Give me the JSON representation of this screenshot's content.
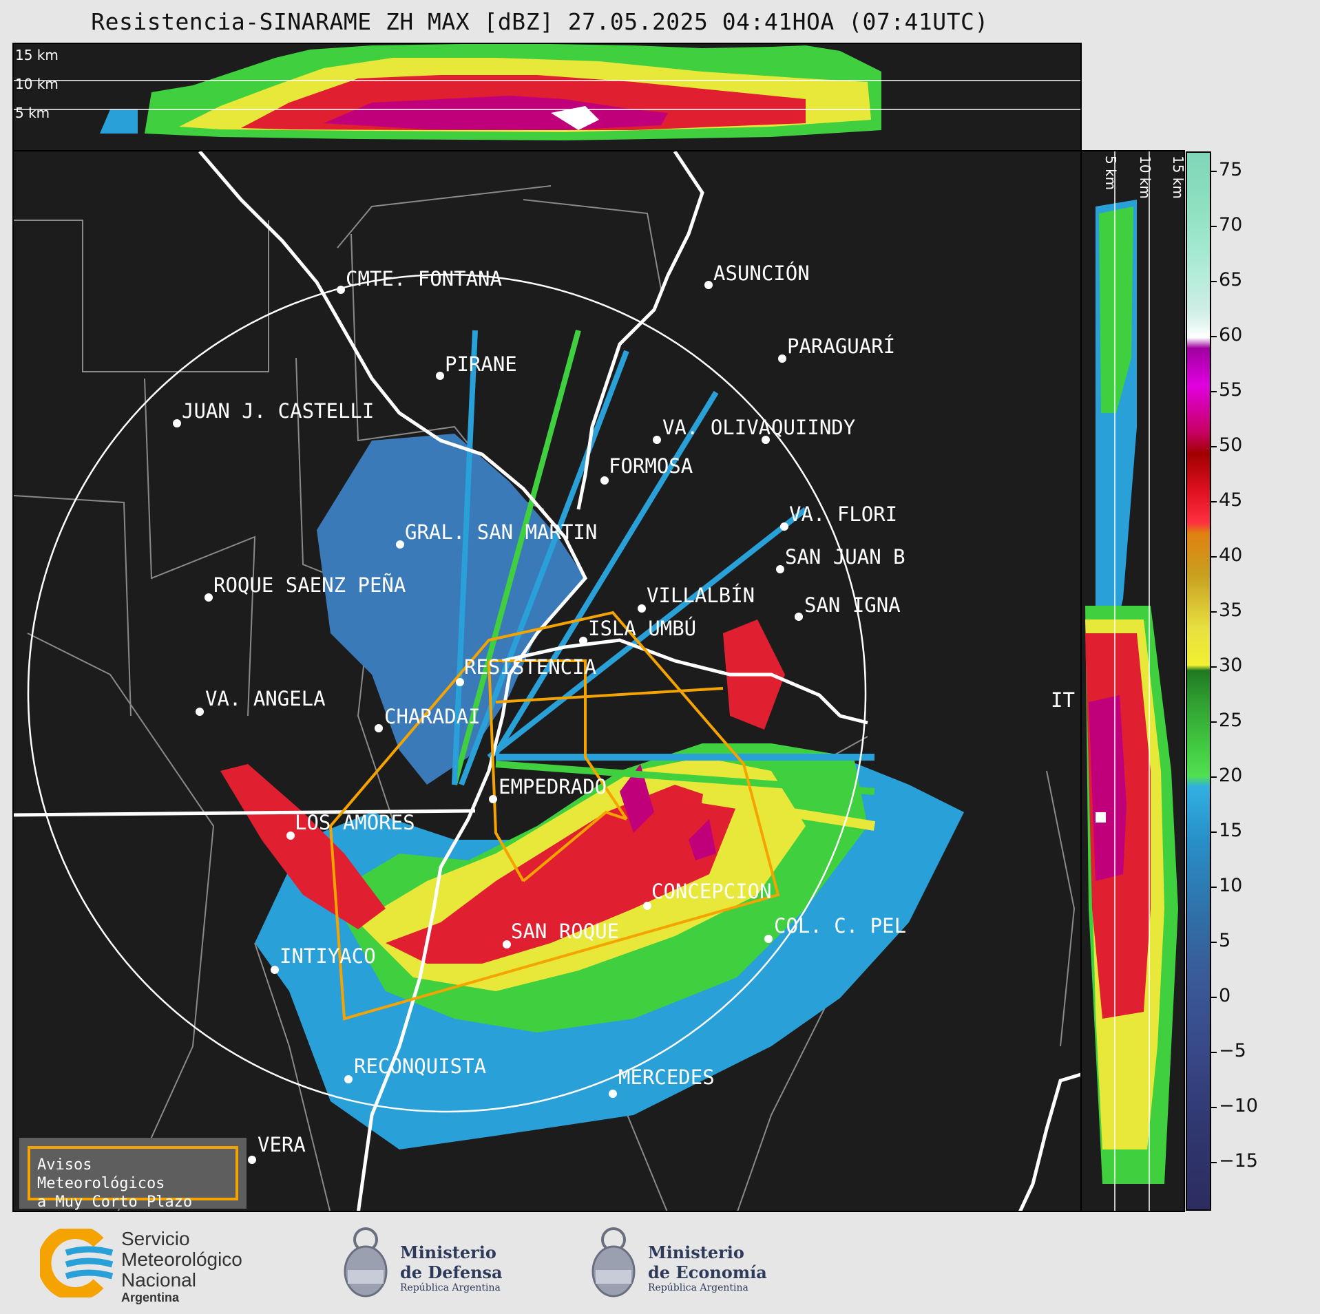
{
  "title": "Resistencia-SINARAME ZH MAX [dBZ] 27.05.2025 04:41HOA (07:41UTC)",
  "top_panel": {
    "km_labels": [
      "15 km",
      "10 km",
      "5 km"
    ]
  },
  "side_panel": {
    "km_labels": [
      "5 km",
      "10 km",
      "15 km"
    ]
  },
  "colorbar": {
    "ticks": [
      "75",
      "70",
      "65",
      "60",
      "55",
      "50",
      "45",
      "40",
      "35",
      "30",
      "25",
      "20",
      "15",
      "10",
      "5",
      "0",
      "−5",
      "−10",
      "−15"
    ]
  },
  "cities": [
    {
      "name": "CMTE. FONTANA"
    },
    {
      "name": "ASUNCIÓN"
    },
    {
      "name": "PIRANE"
    },
    {
      "name": "PARAGUARÍ"
    },
    {
      "name": "JUAN J. CASTELLI"
    },
    {
      "name": "VA. OLIVA"
    },
    {
      "name": "QUIINDY"
    },
    {
      "name": "FORMOSA"
    },
    {
      "name": "VA. FLORI"
    },
    {
      "name": "GRAL. SAN MARTIN"
    },
    {
      "name": "SAN JUAN B"
    },
    {
      "name": "ROQUE SAENZ PEÑA"
    },
    {
      "name": "SAN IGNA"
    },
    {
      "name": "ISLA UMBÚ"
    },
    {
      "name": "VILLALBÍN"
    },
    {
      "name": "RESISTENCIA"
    },
    {
      "name": "VA. ANGELA"
    },
    {
      "name": "CHARADAI"
    },
    {
      "name": "IT"
    },
    {
      "name": "EMPEDRADO"
    },
    {
      "name": "LOS AMORES"
    },
    {
      "name": "CONCEPCION"
    },
    {
      "name": "SAN ROQUE"
    },
    {
      "name": "COL. C. PEL"
    },
    {
      "name": "INTIYACO"
    },
    {
      "name": "RECONQUISTA"
    },
    {
      "name": "MERCEDES"
    },
    {
      "name": "VERA"
    }
  ],
  "legend": {
    "line1": "Avisos Meteorológicos",
    "line2": "a Muy Corto Plazo"
  },
  "logos": {
    "smn": [
      "Servicio",
      "Meteorológico",
      "Nacional",
      "Argentina"
    ],
    "defensa": [
      "Ministerio",
      "de Defensa",
      "República Argentina"
    ],
    "economia": [
      "Ministerio",
      "de Economía",
      "República Argentina"
    ]
  },
  "colors": {
    "map_bg": "#1c1c1c",
    "range_ring": "#ffffff",
    "warning_polygons": "#f5a300",
    "borders_province": "#8a8a8a",
    "borders_country": "#ffffff"
  }
}
